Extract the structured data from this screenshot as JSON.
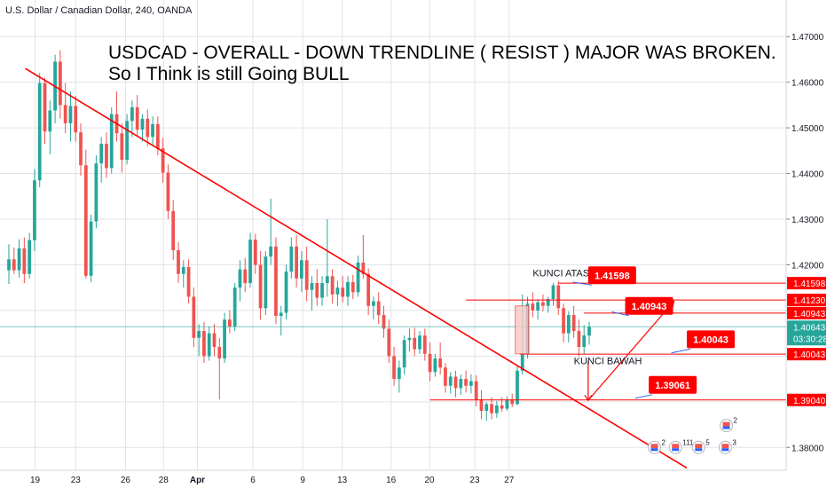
{
  "symbol_line": "U.S. Dollar / Canadian Dollar, 240, OANDA",
  "headline": {
    "line1": "USDCAD - OVERALL - DOWN TRENDLINE ( RESIST ) MAJOR WAS BROKEN.",
    "line2": "So I Think is still Going BULL"
  },
  "colors": {
    "bull": "#26a69a",
    "bear": "#ef5350",
    "annotation": "#ff0000",
    "callout_bg": "#ff0000",
    "current_price": "#26a69a",
    "axis_text": "#131722",
    "grid": "#e0e3eb"
  },
  "chart_data": {
    "type": "candlestick",
    "y_axis": {
      "min": 1.375,
      "max": 1.478,
      "tick_labels": [
        "1.47000",
        "1.46000",
        "1.45000",
        "1.44000",
        "1.43000",
        "1.42000",
        "1.41000",
        "1.40000",
        "1.39000",
        "1.38000"
      ],
      "tick_values": [
        1.47,
        1.46,
        1.45,
        1.44,
        1.43,
        1.42,
        1.41,
        1.4,
        1.39,
        1.38
      ]
    },
    "x_axis": {
      "labels": [
        "19",
        "23",
        "26",
        "28",
        "Apr",
        "6",
        "9",
        "13",
        "16",
        "20",
        "23",
        "27"
      ]
    },
    "trendline_label": "DOWN TRENDLINE ( RESIST ) MAJOR",
    "trendline": {
      "from": [
        1.463
      ],
      "to": [
        1.3755
      ]
    },
    "price_levels": [
      {
        "label": "1.41598",
        "value": 1.41598
      },
      {
        "label": "1.41230",
        "value": 1.4123
      },
      {
        "label": "1.40943",
        "value": 1.40943
      },
      {
        "label": "1.40643",
        "value": 1.40643,
        "current": true,
        "countdown": "03:30:28"
      },
      {
        "label": "1.40043",
        "value": 1.40043
      },
      {
        "label": "1.39040",
        "value": 1.3904
      }
    ],
    "callouts": [
      {
        "text": "1.41598",
        "value": 1.41598
      },
      {
        "text": "1.40943",
        "value": 1.40943
      },
      {
        "text": "1.40043",
        "value": 1.40043
      },
      {
        "text": "1.39061",
        "value": 1.39061
      }
    ],
    "text_annotations": [
      {
        "text": "KUNCI ATAS",
        "value": 1.4175
      },
      {
        "text": "KUNCI BAWAH",
        "value": 1.3982
      }
    ],
    "event_badges": [
      "2",
      "111",
      "5",
      "3",
      "2"
    ],
    "candles": [
      {
        "o": 1.4188,
        "h": 1.4245,
        "l": 1.4158,
        "c": 1.4212
      },
      {
        "o": 1.4212,
        "h": 1.4238,
        "l": 1.418,
        "c": 1.4188
      },
      {
        "o": 1.4188,
        "h": 1.4256,
        "l": 1.4172,
        "c": 1.4236
      },
      {
        "o": 1.4236,
        "h": 1.426,
        "l": 1.416,
        "c": 1.418
      },
      {
        "o": 1.418,
        "h": 1.427,
        "l": 1.417,
        "c": 1.4254
      },
      {
        "o": 1.4254,
        "h": 1.441,
        "l": 1.423,
        "c": 1.4385
      },
      {
        "o": 1.4385,
        "h": 1.462,
        "l": 1.437,
        "c": 1.4598
      },
      {
        "o": 1.4598,
        "h": 1.461,
        "l": 1.4465,
        "c": 1.4492
      },
      {
        "o": 1.4492,
        "h": 1.456,
        "l": 1.4442,
        "c": 1.4538
      },
      {
        "o": 1.4538,
        "h": 1.466,
        "l": 1.451,
        "c": 1.4645
      },
      {
        "o": 1.4645,
        "h": 1.467,
        "l": 1.452,
        "c": 1.455
      },
      {
        "o": 1.455,
        "h": 1.4598,
        "l": 1.4488,
        "c": 1.451
      },
      {
        "o": 1.451,
        "h": 1.458,
        "l": 1.447,
        "c": 1.4548
      },
      {
        "o": 1.4548,
        "h": 1.457,
        "l": 1.447,
        "c": 1.449
      },
      {
        "o": 1.449,
        "h": 1.451,
        "l": 1.4395,
        "c": 1.4418
      },
      {
        "o": 1.4418,
        "h": 1.4452,
        "l": 1.417,
        "c": 1.4176
      },
      {
        "o": 1.4176,
        "h": 1.431,
        "l": 1.4162,
        "c": 1.4295
      },
      {
        "o": 1.4295,
        "h": 1.444,
        "l": 1.428,
        "c": 1.4422
      },
      {
        "o": 1.4422,
        "h": 1.448,
        "l": 1.438,
        "c": 1.4465
      },
      {
        "o": 1.4465,
        "h": 1.449,
        "l": 1.439,
        "c": 1.4412
      },
      {
        "o": 1.4412,
        "h": 1.4545,
        "l": 1.44,
        "c": 1.453
      },
      {
        "o": 1.453,
        "h": 1.458,
        "l": 1.447,
        "c": 1.4488
      },
      {
        "o": 1.4488,
        "h": 1.451,
        "l": 1.4402,
        "c": 1.443
      },
      {
        "o": 1.443,
        "h": 1.453,
        "l": 1.442,
        "c": 1.4515
      },
      {
        "o": 1.4515,
        "h": 1.456,
        "l": 1.448,
        "c": 1.4545
      },
      {
        "o": 1.4545,
        "h": 1.4572,
        "l": 1.4482,
        "c": 1.4496
      },
      {
        "o": 1.4496,
        "h": 1.453,
        "l": 1.447,
        "c": 1.452
      },
      {
        "o": 1.452,
        "h": 1.454,
        "l": 1.446,
        "c": 1.448
      },
      {
        "o": 1.448,
        "h": 1.4525,
        "l": 1.4462,
        "c": 1.4508
      },
      {
        "o": 1.4508,
        "h": 1.4525,
        "l": 1.444,
        "c": 1.4455
      },
      {
        "o": 1.4455,
        "h": 1.4478,
        "l": 1.438,
        "c": 1.4402
      },
      {
        "o": 1.4402,
        "h": 1.442,
        "l": 1.43,
        "c": 1.4318
      },
      {
        "o": 1.4318,
        "h": 1.4342,
        "l": 1.421,
        "c": 1.4232
      },
      {
        "o": 1.4232,
        "h": 1.425,
        "l": 1.416,
        "c": 1.418
      },
      {
        "o": 1.418,
        "h": 1.421,
        "l": 1.415,
        "c": 1.4195
      },
      {
        "o": 1.4195,
        "h": 1.4212,
        "l": 1.4115,
        "c": 1.413
      },
      {
        "o": 1.413,
        "h": 1.415,
        "l": 1.402,
        "c": 1.404
      },
      {
        "o": 1.404,
        "h": 1.407,
        "l": 1.4,
        "c": 1.4055
      },
      {
        "o": 1.4055,
        "h": 1.4075,
        "l": 1.3985,
        "c": 1.4
      },
      {
        "o": 1.4,
        "h": 1.4065,
        "l": 1.399,
        "c": 1.405
      },
      {
        "o": 1.405,
        "h": 1.407,
        "l": 1.4,
        "c": 1.402
      },
      {
        "o": 1.402,
        "h": 1.404,
        "l": 1.3905,
        "c": 1.3995
      },
      {
        "o": 1.3995,
        "h": 1.4095,
        "l": 1.3985,
        "c": 1.408
      },
      {
        "o": 1.408,
        "h": 1.41,
        "l": 1.405,
        "c": 1.4065
      },
      {
        "o": 1.4065,
        "h": 1.416,
        "l": 1.4055,
        "c": 1.415
      },
      {
        "o": 1.415,
        "h": 1.421,
        "l": 1.412,
        "c": 1.419
      },
      {
        "o": 1.419,
        "h": 1.4215,
        "l": 1.414,
        "c": 1.416
      },
      {
        "o": 1.416,
        "h": 1.427,
        "l": 1.415,
        "c": 1.4255
      },
      {
        "o": 1.4255,
        "h": 1.4268,
        "l": 1.418,
        "c": 1.42
      },
      {
        "o": 1.42,
        "h": 1.423,
        "l": 1.408,
        "c": 1.4105
      },
      {
        "o": 1.4105,
        "h": 1.423,
        "l": 1.409,
        "c": 1.4218
      },
      {
        "o": 1.4218,
        "h": 1.4345,
        "l": 1.42,
        "c": 1.424
      },
      {
        "o": 1.424,
        "h": 1.426,
        "l": 1.407,
        "c": 1.4088
      },
      {
        "o": 1.4088,
        "h": 1.411,
        "l": 1.4045,
        "c": 1.4095
      },
      {
        "o": 1.4095,
        "h": 1.42,
        "l": 1.408,
        "c": 1.4185
      },
      {
        "o": 1.4185,
        "h": 1.426,
        "l": 1.417,
        "c": 1.424
      },
      {
        "o": 1.424,
        "h": 1.4265,
        "l": 1.415,
        "c": 1.417
      },
      {
        "o": 1.417,
        "h": 1.423,
        "l": 1.414,
        "c": 1.421
      },
      {
        "o": 1.421,
        "h": 1.424,
        "l": 1.412,
        "c": 1.4145
      },
      {
        "o": 1.4145,
        "h": 1.4175,
        "l": 1.41,
        "c": 1.416
      },
      {
        "o": 1.416,
        "h": 1.419,
        "l": 1.411,
        "c": 1.4128
      },
      {
        "o": 1.4128,
        "h": 1.4175,
        "l": 1.411,
        "c": 1.416
      },
      {
        "o": 1.416,
        "h": 1.43,
        "l": 1.413,
        "c": 1.4175
      },
      {
        "o": 1.4175,
        "h": 1.419,
        "l": 1.4115,
        "c": 1.4135
      },
      {
        "o": 1.4135,
        "h": 1.4165,
        "l": 1.411,
        "c": 1.415
      },
      {
        "o": 1.415,
        "h": 1.4175,
        "l": 1.4118,
        "c": 1.413
      },
      {
        "o": 1.413,
        "h": 1.4175,
        "l": 1.411,
        "c": 1.4162
      },
      {
        "o": 1.4162,
        "h": 1.4178,
        "l": 1.4125,
        "c": 1.414
      },
      {
        "o": 1.414,
        "h": 1.422,
        "l": 1.413,
        "c": 1.4205
      },
      {
        "o": 1.4205,
        "h": 1.4265,
        "l": 1.417,
        "c": 1.418
      },
      {
        "o": 1.418,
        "h": 1.4192,
        "l": 1.409,
        "c": 1.411
      },
      {
        "o": 1.411,
        "h": 1.413,
        "l": 1.408,
        "c": 1.412
      },
      {
        "o": 1.412,
        "h": 1.414,
        "l": 1.407,
        "c": 1.409
      },
      {
        "o": 1.409,
        "h": 1.411,
        "l": 1.404,
        "c": 1.406
      },
      {
        "o": 1.406,
        "h": 1.408,
        "l": 1.3985,
        "c": 1.4
      },
      {
        "o": 1.4,
        "h": 1.402,
        "l": 1.3935,
        "c": 1.395
      },
      {
        "o": 1.395,
        "h": 1.399,
        "l": 1.392,
        "c": 1.3975
      },
      {
        "o": 1.3975,
        "h": 1.4045,
        "l": 1.396,
        "c": 1.4035
      },
      {
        "o": 1.4035,
        "h": 1.406,
        "l": 1.401,
        "c": 1.404
      },
      {
        "o": 1.404,
        "h": 1.4062,
        "l": 1.4,
        "c": 1.4015
      },
      {
        "o": 1.4015,
        "h": 1.4055,
        "l": 1.4005,
        "c": 1.4045
      },
      {
        "o": 1.4045,
        "h": 1.406,
        "l": 1.399,
        "c": 1.4005
      },
      {
        "o": 1.4005,
        "h": 1.403,
        "l": 1.3945,
        "c": 1.3965
      },
      {
        "o": 1.3965,
        "h": 1.4005,
        "l": 1.3955,
        "c": 1.3995
      },
      {
        "o": 1.3995,
        "h": 1.403,
        "l": 1.396,
        "c": 1.3975
      },
      {
        "o": 1.3975,
        "h": 1.3985,
        "l": 1.392,
        "c": 1.3935
      },
      {
        "o": 1.3935,
        "h": 1.3965,
        "l": 1.3918,
        "c": 1.3955
      },
      {
        "o": 1.3955,
        "h": 1.3968,
        "l": 1.391,
        "c": 1.393
      },
      {
        "o": 1.393,
        "h": 1.396,
        "l": 1.3915,
        "c": 1.395
      },
      {
        "o": 1.395,
        "h": 1.3968,
        "l": 1.392,
        "c": 1.3935
      },
      {
        "o": 1.3935,
        "h": 1.396,
        "l": 1.3918,
        "c": 1.3945
      },
      {
        "o": 1.3945,
        "h": 1.3958,
        "l": 1.389,
        "c": 1.3905
      },
      {
        "o": 1.3905,
        "h": 1.3925,
        "l": 1.3862,
        "c": 1.388
      },
      {
        "o": 1.388,
        "h": 1.39,
        "l": 1.3858,
        "c": 1.3895
      },
      {
        "o": 1.3895,
        "h": 1.391,
        "l": 1.3862,
        "c": 1.3875
      },
      {
        "o": 1.3875,
        "h": 1.3902,
        "l": 1.3865,
        "c": 1.3892
      },
      {
        "o": 1.3892,
        "h": 1.391,
        "l": 1.3878,
        "c": 1.3885
      },
      {
        "o": 1.3885,
        "h": 1.3912,
        "l": 1.388,
        "c": 1.3905
      },
      {
        "o": 1.3905,
        "h": 1.3918,
        "l": 1.3888,
        "c": 1.3895
      },
      {
        "o": 1.3895,
        "h": 1.398,
        "l": 1.3892,
        "c": 1.3968
      },
      {
        "o": 1.3968,
        "h": 1.4135,
        "l": 1.396,
        "c": 1.4005
      },
      {
        "o": 1.4005,
        "h": 1.413,
        "l": 1.3995,
        "c": 1.4115
      },
      {
        "o": 1.4115,
        "h": 1.414,
        "l": 1.4085,
        "c": 1.41
      },
      {
        "o": 1.41,
        "h": 1.4125,
        "l": 1.408,
        "c": 1.4118
      },
      {
        "o": 1.4118,
        "h": 1.4135,
        "l": 1.4098,
        "c": 1.411
      },
      {
        "o": 1.411,
        "h": 1.413,
        "l": 1.4095,
        "c": 1.4125
      },
      {
        "o": 1.4125,
        "h": 1.416,
        "l": 1.411,
        "c": 1.4155
      },
      {
        "o": 1.4155,
        "h": 1.4165,
        "l": 1.409,
        "c": 1.4105
      },
      {
        "o": 1.4105,
        "h": 1.4115,
        "l": 1.403,
        "c": 1.405
      },
      {
        "o": 1.405,
        "h": 1.4098,
        "l": 1.403,
        "c": 1.409
      },
      {
        "o": 1.409,
        "h": 1.411,
        "l": 1.404,
        "c": 1.4055
      },
      {
        "o": 1.4055,
        "h": 1.408,
        "l": 1.4,
        "c": 1.402
      },
      {
        "o": 1.402,
        "h": 1.4068,
        "l": 1.4005,
        "c": 1.4045
      },
      {
        "o": 1.4045,
        "h": 1.4075,
        "l": 1.4025,
        "c": 1.4064
      }
    ]
  }
}
